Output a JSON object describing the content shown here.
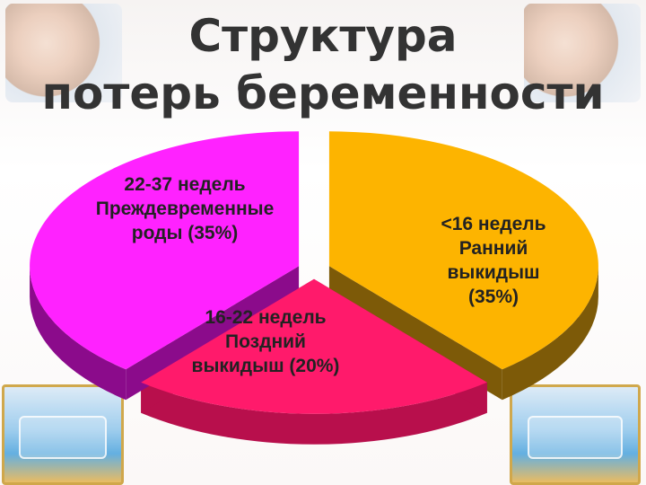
{
  "title": {
    "line1": "Структура",
    "line2": "потерь беременности"
  },
  "decor": {
    "left_photo": "woman-portrait",
    "right_photo": "woman-portrait",
    "left_incubator": "incubator",
    "right_incubator": "incubator"
  },
  "chart_data": {
    "type": "pie",
    "style": "3d-exploded",
    "slices": [
      {
        "lines": [
          "<16 недель",
          "Ранний",
          "выкидыш",
          "(35%)"
        ],
        "value": 35,
        "color": "#fdb400",
        "side_color": "#7d5a08"
      },
      {
        "lines": [
          "16-22 недель",
          "Поздний",
          "выкидыш (20%)"
        ],
        "value": 20,
        "color": "#ff1a6b",
        "side_color": "#b80f4c"
      },
      {
        "lines": [
          "22-37 недель",
          "Преждевременные",
          "роды (35%)"
        ],
        "value": 35,
        "color": "#ff22ff",
        "side_color": "#8b0b8b"
      }
    ]
  }
}
